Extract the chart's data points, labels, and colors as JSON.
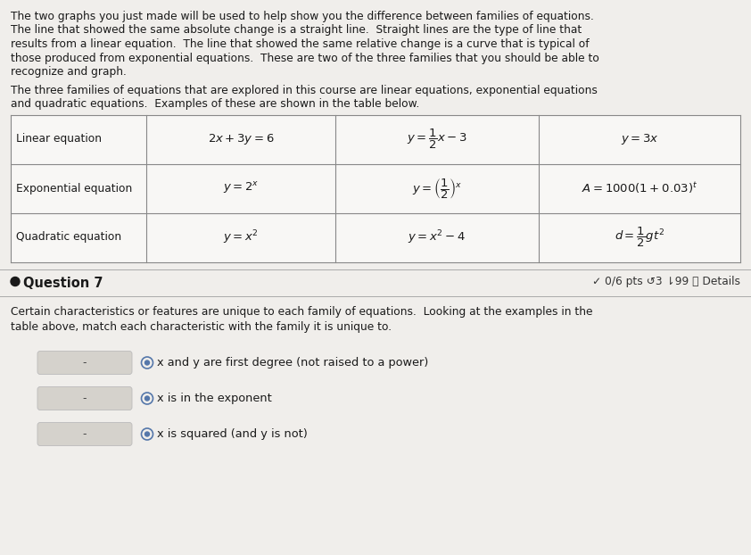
{
  "background_color": "#f0eeeb",
  "text_color": "#1a1a1a",
  "intro_lines": [
    "The two graphs you just made will be used to help show you the difference between families of equations.",
    "The line that showed the same absolute change is a straight line.  Straight lines are the type of line that",
    "results from a linear equation.  The line that showed the same relative change is a curve that is typical of",
    "those produced from exponential equations.  These are two of the three families that you should be able to",
    "recognize and graph."
  ],
  "second_lines": [
    "The three families of equations that are explored in this course are linear equations, exponential equations",
    "and quadratic equations.  Examples of these are shown in the table below."
  ],
  "row_labels": [
    "Linear equation",
    "Exponential equation",
    "Quadratic equation"
  ],
  "eq1_list": [
    "$2x + 3y = 6$",
    "$y = 2^x$",
    "$y = x^2$"
  ],
  "eq2_list": [
    "$y = \\dfrac{1}{2}x - 3$",
    "$y = \\left(\\dfrac{1}{2}\\right)^x$",
    "$y = x^2 - 4$"
  ],
  "eq3_list": [
    "$y = 3x$",
    "$A = 1000(1+0.03)^t$",
    "$d = \\dfrac{1}{2}gt^2$"
  ],
  "question_label": "Question 7",
  "question_score": "✓ 0/6 pts ↺3 ⇂99 ⓘ Details",
  "question_lines": [
    "Certain characteristics or features are unique to each family of equations.  Looking at the examples in the",
    "table above, match each characteristic with the family it is unique to."
  ],
  "characteristics": [
    "x and y are first degree (not raised to a power)",
    "x is in the exponent",
    "x is squared (and y is not)"
  ],
  "bg_light": "#eceae6",
  "dropdown_color": "#d5d2cc",
  "circle_color": "#5577aa",
  "table_line_color": "#888888",
  "sep_line_color": "#aaaaaa"
}
